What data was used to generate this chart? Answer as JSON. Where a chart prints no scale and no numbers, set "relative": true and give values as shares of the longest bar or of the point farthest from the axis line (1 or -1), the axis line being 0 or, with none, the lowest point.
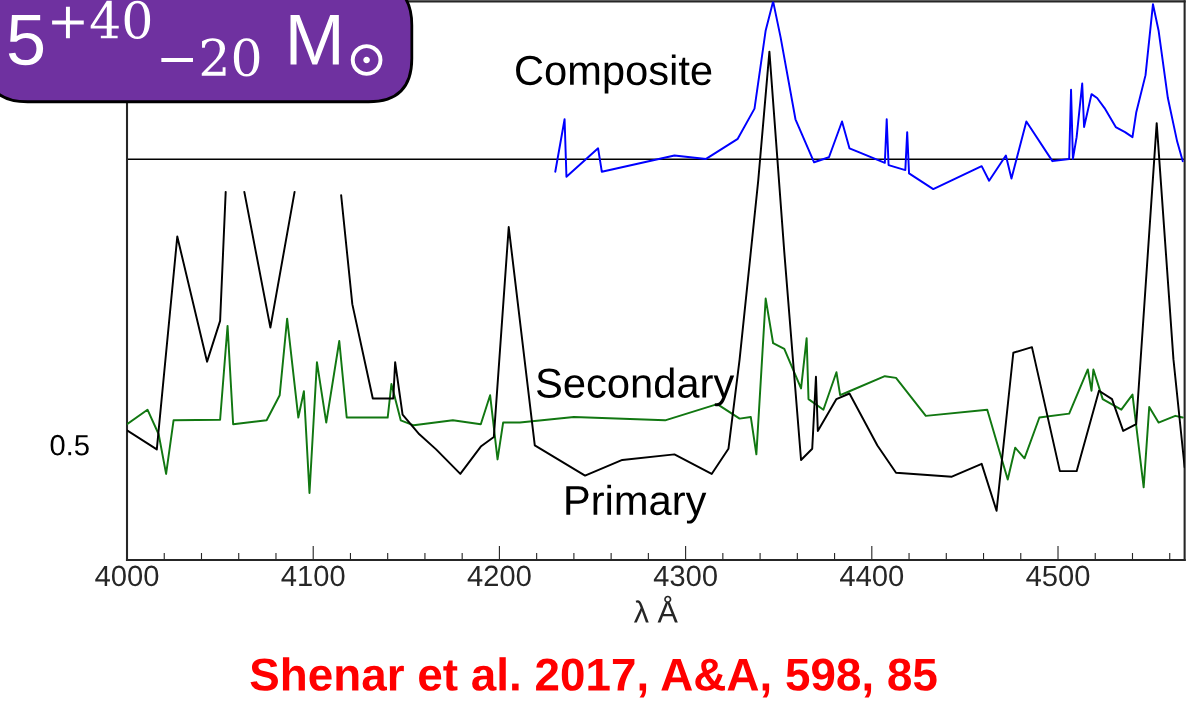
{
  "chart_data": {
    "type": "line",
    "relative": true,
    "xlabel": "λ Å",
    "xlim": [
      4000,
      4568
    ],
    "xticks": [
      4000,
      {
        "value": 4020,
        "label": null
      },
      {
        "value": 4040,
        "label": null
      },
      {
        "value": 4060,
        "label": null
      },
      {
        "value": 4080,
        "label": null
      },
      4100,
      {
        "value": 4120,
        "label": null
      },
      {
        "value": 4140,
        "label": null
      },
      {
        "value": 4160,
        "label": null
      },
      {
        "value": 4180,
        "label": null
      },
      4200,
      {
        "value": 4220,
        "label": null
      },
      {
        "value": 4240,
        "label": null
      },
      {
        "value": 4260,
        "label": null
      },
      {
        "value": 4280,
        "label": null
      },
      4300,
      {
        "value": 4320,
        "label": null
      },
      {
        "value": 4340,
        "label": null
      },
      {
        "value": 4360,
        "label": null
      },
      {
        "value": 4380,
        "label": null
      },
      4400,
      {
        "value": 4420,
        "label": null
      },
      {
        "value": 4440,
        "label": null
      },
      {
        "value": 4460,
        "label": null
      },
      {
        "value": 4480,
        "label": null
      },
      4500,
      {
        "value": 4520,
        "label": null
      },
      {
        "value": 4540,
        "label": null
      },
      {
        "value": 4560,
        "label": null
      }
    ],
    "legend": false,
    "grid": false,
    "series": [
      {
        "name": "Composite",
        "color": "#0000ff",
        "x": [
          4230,
          4235,
          4236,
          4253,
          4255,
          4294,
          4311,
          4328,
          4337,
          4343,
          4347,
          4351,
          4359,
          4369,
          4377,
          4384,
          4388,
          4393,
          4407,
          4408,
          4409,
          4418,
          4419,
          4420,
          4433,
          4459,
          4463,
          4472,
          4475,
          4483,
          4497,
          4506,
          4507,
          4508,
          4510,
          4513,
          4514,
          4518,
          4521,
          4525,
          4531,
          4536,
          4540,
          4542,
          4547,
          4551,
          4554,
          4559,
          4564,
          4567
        ],
        "values": [
          0.695,
          0.789,
          0.686,
          0.737,
          0.695,
          0.724,
          0.718,
          0.754,
          0.808,
          0.948,
          1.0,
          0.936,
          0.789,
          0.712,
          0.721,
          0.785,
          0.737,
          0.73,
          0.711,
          0.789,
          0.707,
          0.698,
          0.766,
          0.692,
          0.664,
          0.705,
          0.679,
          0.724,
          0.683,
          0.785,
          0.714,
          0.718,
          0.842,
          0.718,
          0.757,
          0.853,
          0.775,
          0.834,
          0.827,
          0.809,
          0.775,
          0.766,
          0.757,
          0.801,
          0.868,
          0.995,
          0.948,
          0.827,
          0.749,
          0.714
        ]
      },
      {
        "name": "Secondary",
        "color": "#117711",
        "x": [
          4000,
          4011,
          4017,
          4021,
          4025,
          4050,
          4054,
          4057,
          4075,
          4082,
          4086,
          4092,
          4095,
          4098,
          4102,
          4107,
          4114,
          4118,
          4140,
          4142,
          4147,
          4154,
          4175,
          4190,
          4195,
          4199,
          4202,
          4211,
          4240,
          4289,
          4317,
          4329,
          4335,
          4338,
          4343,
          4347,
          4353,
          4362,
          4365,
          4366,
          4374,
          4381,
          4383,
          4388,
          4407,
          4413,
          4429,
          4462,
          4473,
          4477,
          4482,
          4490,
          4506,
          4516,
          4518,
          4519,
          4524,
          4534,
          4540,
          4546,
          4549,
          4554,
          4563,
          4567
        ],
        "values": [
          0.243,
          0.269,
          0.225,
          0.154,
          0.25,
          0.251,
          0.419,
          0.243,
          0.25,
          0.295,
          0.432,
          0.255,
          0.302,
          0.12,
          0.354,
          0.246,
          0.392,
          0.255,
          0.255,
          0.315,
          0.25,
          0.241,
          0.25,
          0.243,
          0.295,
          0.18,
          0.246,
          0.246,
          0.256,
          0.25,
          0.279,
          0.253,
          0.256,
          0.189,
          0.468,
          0.388,
          0.378,
          0.307,
          0.397,
          0.288,
          0.269,
          0.336,
          0.295,
          0.302,
          0.329,
          0.326,
          0.258,
          0.269,
          0.144,
          0.201,
          0.182,
          0.255,
          0.262,
          0.341,
          0.303,
          0.341,
          0.288,
          0.269,
          0.296,
          0.13,
          0.274,
          0.246,
          0.258,
          0.255
        ]
      },
      {
        "name": "Primary",
        "color": "#000000",
        "x": [
          4000,
          4016,
          4027,
          4043,
          4050,
          4053,
          4058,
          4063,
          4077,
          4090,
          4102,
          4115,
          4121,
          4132,
          4143,
          4144,
          4148,
          4157,
          4166,
          4179,
          4190,
          4197,
          4205,
          4219,
          4246,
          4266,
          4294,
          4314,
          4323,
          4329,
          4339,
          4345,
          4353,
          4362,
          4368,
          4370,
          4371,
          4381,
          4388,
          4403,
          4413,
          4443,
          4459,
          4467,
          4476,
          4486,
          4501,
          4510,
          4522,
          4529,
          4535,
          4542,
          4553,
          4562,
          4568
        ],
        "values": [
          0.232,
          0.198,
          0.579,
          0.355,
          0.428,
          0.659,
          null,
          0.659,
          0.416,
          0.659,
          null,
          0.653,
          0.458,
          0.289,
          0.289,
          0.354,
          0.26,
          0.225,
          0.198,
          0.154,
          0.203,
          0.22,
          0.596,
          0.205,
          0.151,
          0.179,
          0.189,
          0.154,
          0.199,
          0.359,
          0.679,
          0.91,
          0.551,
          0.179,
          0.199,
          0.328,
          0.231,
          0.288,
          0.298,
          0.205,
          0.156,
          0.149,
          0.172,
          0.088,
          0.371,
          0.381,
          0.159,
          0.159,
          0.303,
          0.288,
          0.231,
          0.243,
          0.782,
          0.359,
          0.166
        ]
      }
    ],
    "ref_lines": [
      {
        "axis": "y",
        "value": 0.7175,
        "color": "#000000"
      }
    ],
    "annotations": [
      "5$^{+40}$$_{−20}$ M$_{⊙}$",
      "Shenar et al. 2017, A&A, 598, 85",
      "0.5"
    ]
  }
}
